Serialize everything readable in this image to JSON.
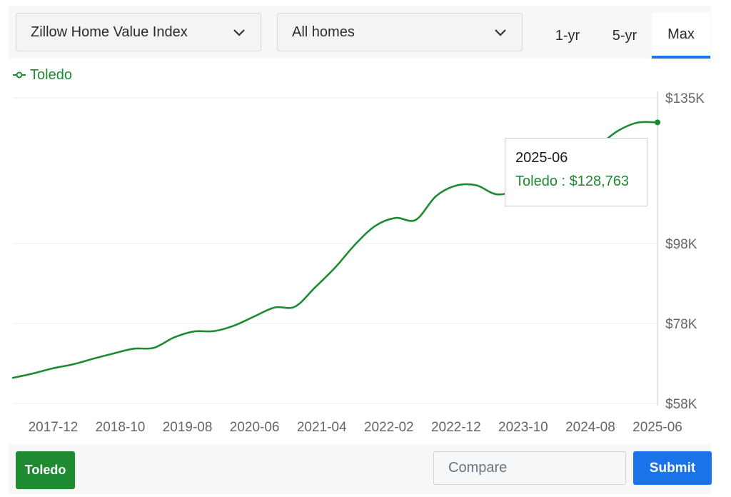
{
  "controls": {
    "metric_label": "Zillow Home Value Index",
    "type_label": "All homes",
    "ranges": [
      "1-yr",
      "5-yr",
      "Max"
    ],
    "selected_range": "Max"
  },
  "legend": {
    "label": "Toledo"
  },
  "tooltip": {
    "date": "2025-06",
    "label": "Toledo : $128,763"
  },
  "footer": {
    "chip_label": "Toledo",
    "compare_placeholder": "Compare",
    "submit_label": "Submit"
  },
  "colors": {
    "series": "#1e8a32",
    "accent": "#1a73e8"
  },
  "chart_data": {
    "type": "line",
    "title": "",
    "xlabel": "",
    "ylabel": "",
    "x_tick_labels": [
      "2017-12",
      "2018-10",
      "2019-08",
      "2020-06",
      "2021-04",
      "2022-02",
      "2022-12",
      "2023-10",
      "2024-08",
      "2025-06"
    ],
    "y_tick_labels": [
      "$135K",
      "$98K",
      "$78K",
      "$58K"
    ],
    "y_tick_values": [
      135000,
      98000,
      78000,
      58000
    ],
    "ylim": [
      58000,
      135000
    ],
    "grid": true,
    "series": [
      {
        "name": "Toledo",
        "points": [
          [
            "2017-06",
            64400
          ],
          [
            "2017-09",
            65500
          ],
          [
            "2017-12",
            66800
          ],
          [
            "2018-03",
            67800
          ],
          [
            "2018-06",
            69200
          ],
          [
            "2018-09",
            70500
          ],
          [
            "2018-12",
            71700
          ],
          [
            "2019-03",
            71900
          ],
          [
            "2019-06",
            74500
          ],
          [
            "2019-09",
            76000
          ],
          [
            "2019-12",
            76100
          ],
          [
            "2020-03",
            77500
          ],
          [
            "2020-06",
            79800
          ],
          [
            "2020-09",
            82000
          ],
          [
            "2020-12",
            82200
          ],
          [
            "2021-03",
            87000
          ],
          [
            "2021-06",
            92000
          ],
          [
            "2021-09",
            97800
          ],
          [
            "2021-12",
            102500
          ],
          [
            "2022-03",
            104500
          ],
          [
            "2022-06",
            104000
          ],
          [
            "2022-09",
            110000
          ],
          [
            "2022-12",
            112700
          ],
          [
            "2023-03",
            112800
          ],
          [
            "2023-06",
            110500
          ],
          [
            "2023-09",
            111500
          ],
          [
            "2023-12",
            114500
          ],
          [
            "2024-03",
            116500
          ],
          [
            "2024-06",
            119000
          ],
          [
            "2024-09",
            122500
          ],
          [
            "2024-12",
            126500
          ],
          [
            "2025-03",
            128700
          ],
          [
            "2025-06",
            128763
          ]
        ]
      }
    ]
  }
}
